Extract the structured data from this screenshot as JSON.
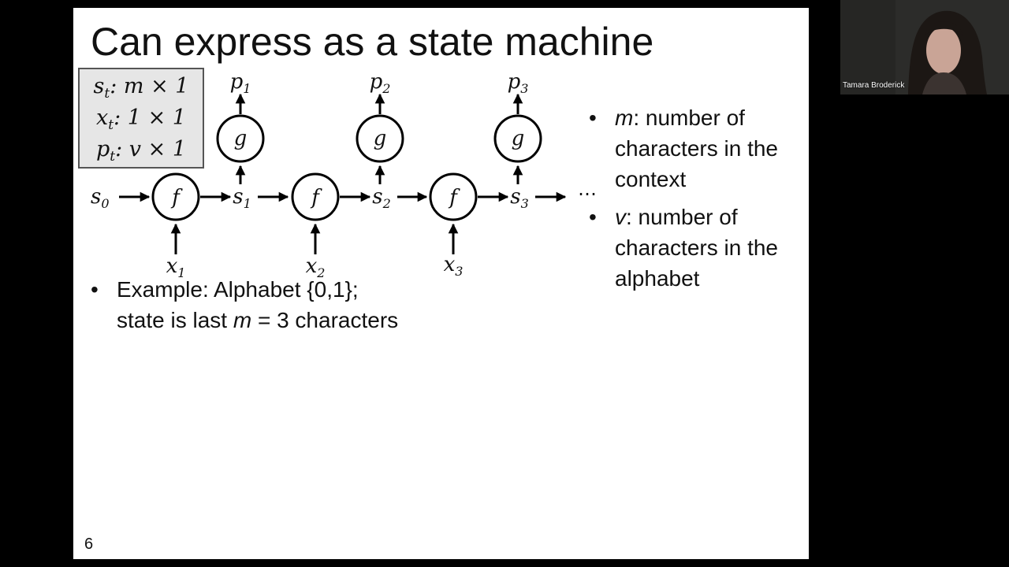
{
  "slide": {
    "title": "Can express as a state machine",
    "page_number": "6"
  },
  "dimensions": [
    {
      "var": "s",
      "sub": "t",
      "rest": ": m × 1"
    },
    {
      "var": "x",
      "sub": "t",
      "rest": ": 1 × 1"
    },
    {
      "var": "p",
      "sub": "t",
      "rest": ": v × 1"
    }
  ],
  "diagram": {
    "f_label": "f",
    "g_label": "g",
    "s0": {
      "base": "s",
      "sub": "0"
    },
    "states": [
      {
        "base": "s",
        "sub": "1"
      },
      {
        "base": "s",
        "sub": "2"
      },
      {
        "base": "s",
        "sub": "3"
      }
    ],
    "inputs": [
      {
        "base": "x",
        "sub": "1"
      },
      {
        "base": "x",
        "sub": "2"
      },
      {
        "base": "x",
        "sub": "3"
      }
    ],
    "outputs": [
      {
        "base": "p",
        "sub": "1"
      },
      {
        "base": "p",
        "sub": "2"
      },
      {
        "base": "p",
        "sub": "3"
      }
    ],
    "ellipsis": "⋯"
  },
  "bullets_right": [
    {
      "var": "m",
      "text": ": number of characters in the context"
    },
    {
      "var": "v",
      "text": ": number of characters in the alphabet"
    }
  ],
  "bullet_bottom": {
    "line1": "Example: Alphabet {0,1};",
    "line2_pre": "state is last ",
    "line2_var": "m",
    "line2_post": " = 3 characters"
  },
  "webcam": {
    "participant_name": "Tamara Broderick"
  },
  "bullet_char": "•"
}
